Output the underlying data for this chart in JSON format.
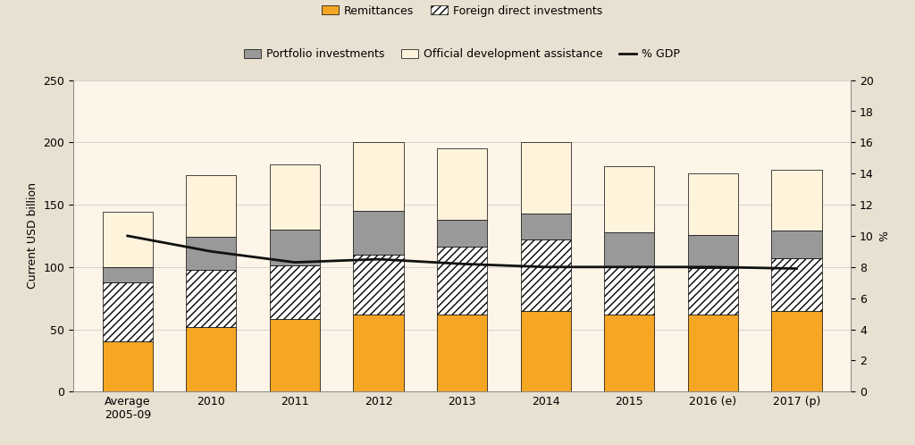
{
  "categories": [
    "Average\n2005-09",
    "2010",
    "2011",
    "2012",
    "2013",
    "2014",
    "2015",
    "2016 (e)",
    "2017 (p)"
  ],
  "remittances": [
    40,
    52,
    58,
    62,
    62,
    65,
    62,
    62,
    65
  ],
  "fdi": [
    48,
    46,
    43,
    48,
    54,
    57,
    38,
    37,
    42
  ],
  "portfolio": [
    12,
    26,
    29,
    35,
    22,
    21,
    28,
    27,
    22
  ],
  "oda": [
    44,
    50,
    52,
    55,
    57,
    57,
    53,
    49,
    49
  ],
  "gdp_pct": [
    10.0,
    9.0,
    8.3,
    8.5,
    8.2,
    8.0,
    8.0,
    8.0,
    7.9
  ],
  "bar_width": 0.6,
  "remittances_color": "#F5A623",
  "fdi_color": "#FFFFFF",
  "fdi_hatch": "////",
  "portfolio_color": "#999999",
  "oda_color": "#FFF3DC",
  "gdp_line_color": "#111111",
  "figure_bg_color": "#E8E0D0",
  "plot_bg_color": "#FDF5E8",
  "legend_bg_color": "#E8E0D0",
  "ylabel_left": "Current USD billion",
  "ylabel_right": "%",
  "ylim_left": [
    0,
    250
  ],
  "ylim_right": [
    0,
    20
  ],
  "yticks_left": [
    0,
    50,
    100,
    150,
    200,
    250
  ],
  "yticks_right": [
    0,
    2,
    4,
    6,
    8,
    10,
    12,
    14,
    16,
    18,
    20
  ],
  "legend_row1": [
    "Remittances",
    "Foreign direct investments"
  ],
  "legend_row2": [
    "Portfolio investments",
    "Official development assistance",
    "% GDP"
  ],
  "tick_fontsize": 9,
  "label_fontsize": 9,
  "legend_fontsize": 9
}
